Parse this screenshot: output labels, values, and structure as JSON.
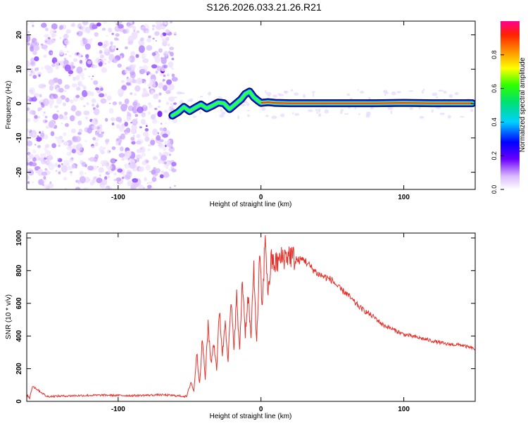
{
  "chart_data": [
    {
      "type": "heatmap",
      "title": "S126.2026.033.21.26.R21",
      "xlabel": "Height of straight line (km)",
      "ylabel": "Frequency (Hz)",
      "xlim": [
        -164,
        150
      ],
      "ylim": [
        -25,
        24
      ],
      "xticks": [
        -100,
        0,
        100
      ],
      "xtick_labels": [
        "-100",
        "0",
        "100"
      ],
      "yticks": [
        -20,
        -10,
        0,
        10,
        20
      ],
      "ytick_labels": [
        "-20",
        "-10",
        "0",
        "10",
        "20"
      ],
      "colorbar": {
        "label": "Normalized spectral amplitude",
        "range": [
          0,
          1
        ],
        "ticks": [
          0.0,
          0.2,
          0.4,
          0.6,
          0.8
        ],
        "tick_labels": [
          "0.0",
          "0.2",
          "0.4",
          "0.6",
          "0.8"
        ]
      },
      "noise_region_x": [
        -164,
        -62
      ],
      "signal_trace": {
        "x": [
          -62,
          -58,
          -54,
          -50,
          -46,
          -42,
          -38,
          -34,
          -30,
          -26,
          -22,
          -18,
          -14,
          -11,
          -8,
          -5,
          -2,
          0,
          5,
          10,
          20,
          40,
          60,
          80,
          100,
          120,
          148
        ],
        "y": [
          -3.5,
          -2.5,
          -1,
          -2.2,
          -1.2,
          -0.3,
          -1.4,
          -0.6,
          0.3,
          0.1,
          -1.6,
          -0.2,
          1.2,
          2.8,
          3.5,
          1.8,
          0.8,
          0.2,
          0.4,
          0.2,
          0.1,
          0.1,
          0.1,
          0.1,
          0.2,
          0.1,
          0.1
        ]
      }
    },
    {
      "type": "line",
      "xlabel": "Height of straight line (km)",
      "ylabel": "SNR (10 * v/v)",
      "xlim": [
        -164,
        150
      ],
      "ylim": [
        0,
        1030
      ],
      "xticks": [
        -100,
        0,
        100
      ],
      "xtick_labels": [
        "-100",
        "0",
        "100"
      ],
      "yticks": [
        0,
        200,
        400,
        600,
        800,
        1000
      ],
      "ytick_labels": [
        "0",
        "200",
        "400",
        "600",
        "800",
        "1000"
      ],
      "color": "#e8302a",
      "series": [
        {
          "name": "SNR",
          "x": [
            -164,
            -162,
            -160,
            -150,
            -130,
            -110,
            -90,
            -70,
            -60,
            -52,
            -49,
            -47,
            -45,
            -43,
            -41,
            -39,
            -37,
            -35,
            -33,
            -31,
            -29,
            -27,
            -25,
            -23,
            -21,
            -19,
            -17,
            -15,
            -13,
            -11,
            -9,
            -7,
            -5,
            -3,
            -1,
            1,
            3,
            5,
            7,
            10,
            15,
            20,
            25,
            30,
            35,
            40,
            45,
            50,
            55,
            60,
            65,
            70,
            75,
            80,
            85,
            90,
            95,
            100,
            110,
            120,
            130,
            140,
            150
          ],
          "y": [
            40,
            20,
            95,
            30,
            35,
            38,
            35,
            40,
            35,
            30,
            120,
            60,
            300,
            110,
            380,
            140,
            480,
            230,
            360,
            200,
            570,
            280,
            500,
            250,
            610,
            330,
            640,
            300,
            760,
            420,
            650,
            380,
            820,
            350,
            880,
            560,
            1030,
            640,
            860,
            840,
            880,
            900,
            860,
            870,
            820,
            780,
            760,
            740,
            690,
            660,
            610,
            570,
            540,
            510,
            470,
            450,
            430,
            410,
            390,
            370,
            350,
            345,
            320
          ]
        }
      ]
    }
  ]
}
